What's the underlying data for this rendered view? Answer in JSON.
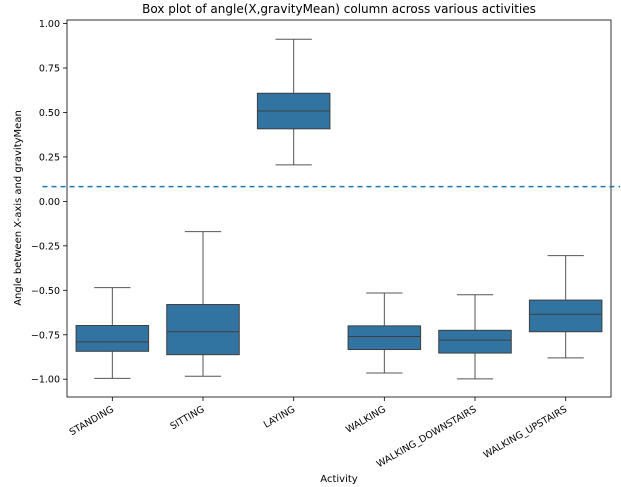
{
  "chart_data": {
    "type": "box",
    "title": "Box plot of angle(X,gravityMean) column across various activities",
    "xlabel": "Activity",
    "ylabel": "Angle between X-axis and gravityMean",
    "ylim": [
      -1.1,
      1.02
    ],
    "yticks": [
      1.0,
      0.75,
      0.5,
      0.25,
      0.0,
      -0.25,
      -0.5,
      -0.75,
      -1.0
    ],
    "ytick_labels": [
      "1.00",
      "0.75",
      "0.50",
      "0.25",
      "0.00",
      "−0.25",
      "−0.50",
      "−0.75",
      "−1.00"
    ],
    "categories": [
      "STANDING",
      "SITTING",
      "LAYING",
      "WALKING",
      "WALKING_DOWNSTAIRS",
      "WALKING_UPSTAIRS"
    ],
    "boxes": [
      {
        "category": "STANDING",
        "whisker_low": -0.995,
        "q1": -0.843,
        "median": -0.79,
        "q3": -0.698,
        "whisker_high": -0.485
      },
      {
        "category": "SITTING",
        "whisker_low": -0.983,
        "q1": -0.862,
        "median": -0.733,
        "q3": -0.58,
        "whisker_high": -0.17
      },
      {
        "category": "LAYING",
        "whisker_low": 0.205,
        "q1": 0.408,
        "median": 0.508,
        "q3": 0.608,
        "whisker_high": 0.912
      },
      {
        "category": "WALKING",
        "whisker_low": -0.965,
        "q1": -0.833,
        "median": -0.76,
        "q3": -0.7,
        "whisker_high": -0.515
      },
      {
        "category": "WALKING_DOWNSTAIRS",
        "whisker_low": -0.998,
        "q1": -0.853,
        "median": -0.78,
        "q3": -0.725,
        "whisker_high": -0.525
      },
      {
        "category": "WALKING_UPSTAIRS",
        "whisker_low": -0.88,
        "q1": -0.733,
        "median": -0.635,
        "q3": -0.555,
        "whisker_high": -0.305
      }
    ],
    "reference_line": {
      "y": 0.083,
      "x_start": -0.77,
      "x_end": 5.6,
      "style": "dashed"
    },
    "colors": {
      "box_fill": "#3274a1",
      "box_edge": "#3f3f3f",
      "whisker": "#555555",
      "reference_line": "#1f77b4"
    }
  }
}
